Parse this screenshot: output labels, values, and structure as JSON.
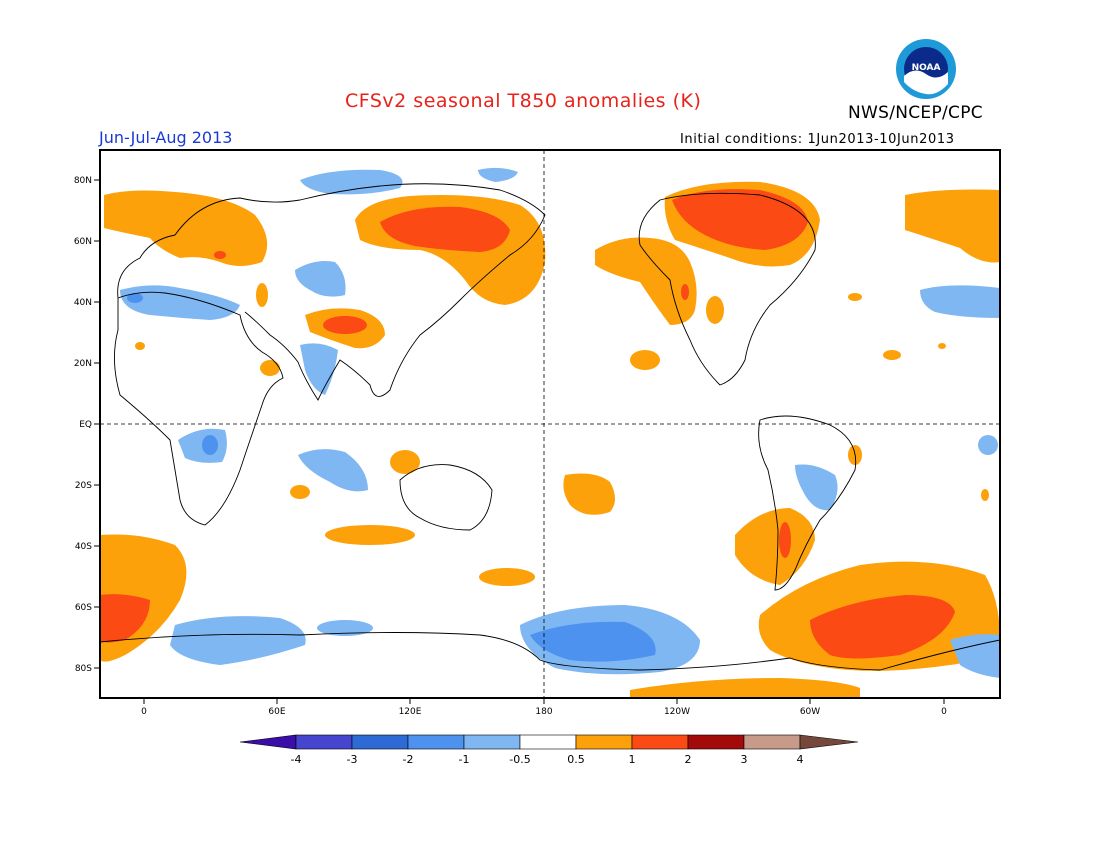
{
  "title": "CFSv2 seasonal T850 anomalies (K)",
  "season": "Jun-Jul-Aug 2013",
  "initial_conditions": "Initial conditions: 1Jun2013-10Jun2013",
  "agency": "NWS/NCEP/CPC",
  "logo_text": "NOAA",
  "map": {
    "lat_labels": [
      "80N",
      "60N",
      "40N",
      "20N",
      "EQ",
      "20S",
      "40S",
      "60S",
      "80S"
    ],
    "lon_labels": [
      "0",
      "60E",
      "120E",
      "180",
      "120W",
      "60W",
      "0"
    ]
  },
  "colors": {
    "neg4": "#3b0ea8",
    "neg3": "#4545cf",
    "neg2": "#2d6ad6",
    "neg1": "#4c92ee",
    "neg05": "#7fb7f2",
    "zero": "#ffffff",
    "pos05": "#fca10a",
    "pos1": "#fb4a14",
    "pos2": "#fb2b0e",
    "pos3": "#a30b0b",
    "pos4": "#c89a8a",
    "pos5": "#75483b"
  },
  "colorbar": {
    "labels": [
      "-4",
      "-3",
      "-2",
      "-1",
      "-0.5",
      "0.5",
      "1",
      "2",
      "3",
      "4"
    ]
  }
}
